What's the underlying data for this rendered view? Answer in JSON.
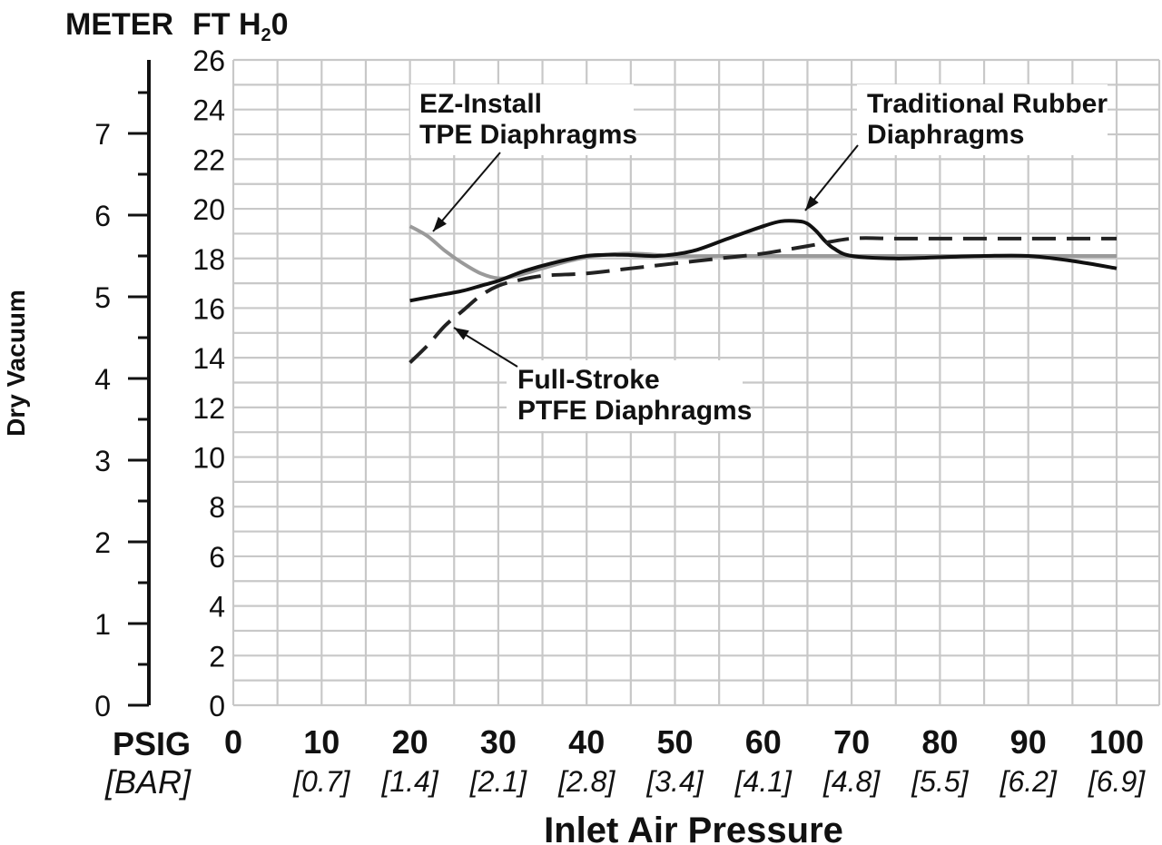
{
  "chart_data": {
    "type": "line",
    "xlabel": "Inlet Air Pressure",
    "ylabel": "Dry Vacuum",
    "left_axis_title": "METER",
    "right_axis_title": "FT H",
    "right_axis_title_sub": "2",
    "right_axis_title_tail": "0",
    "x_unit_label": "PSIG",
    "x_unit_label_secondary": "[BAR]",
    "xlim": [
      0,
      100
    ],
    "ylim": [
      0,
      26
    ],
    "y2lim": [
      0,
      7.9
    ],
    "x_ticks": [
      "0",
      "10",
      "20",
      "30",
      "40",
      "50",
      "60",
      "70",
      "80",
      "90",
      "100"
    ],
    "x_ticks_bar": [
      "",
      "[0.7]",
      "[1.4]",
      "[2.1]",
      "[2.8]",
      "[3.4]",
      "[4.1]",
      "[4.8]",
      "[5.5]",
      "[6.2]",
      "[6.9]"
    ],
    "y_ticks": [
      "0",
      "2",
      "4",
      "6",
      "8",
      "10",
      "12",
      "14",
      "16",
      "18",
      "20",
      "22",
      "24",
      "26"
    ],
    "y_meter_ticks": [
      "0",
      "1",
      "2",
      "3",
      "4",
      "5",
      "6",
      "7"
    ],
    "grid": true,
    "series": [
      {
        "name": "EZ-Install TPE Diaphragms",
        "color": "#9a9a9a",
        "dash": "solid",
        "x": [
          20,
          22,
          24,
          26,
          28,
          30,
          32,
          35,
          38,
          41,
          45,
          50,
          55,
          60,
          70,
          80,
          90,
          100
        ],
        "y": [
          19.3,
          18.9,
          18.3,
          17.8,
          17.4,
          17.2,
          17.3,
          17.6,
          17.9,
          18.1,
          18.2,
          18.1,
          18.1,
          18.1,
          18.1,
          18.1,
          18.1,
          18.1
        ]
      },
      {
        "name": "Traditional Rubber Diaphragms",
        "color": "#111111",
        "dash": "solid",
        "x": [
          20,
          23,
          26,
          28,
          30,
          33,
          36,
          40,
          44,
          48,
          52,
          56,
          60,
          62,
          64,
          65,
          66,
          67,
          68,
          70,
          75,
          80,
          85,
          90,
          95,
          100
        ],
        "y": [
          16.3,
          16.5,
          16.7,
          16.9,
          17.1,
          17.5,
          17.8,
          18.1,
          18.15,
          18.1,
          18.3,
          18.8,
          19.3,
          19.5,
          19.5,
          19.4,
          19.1,
          18.7,
          18.4,
          18.1,
          18.0,
          18.05,
          18.1,
          18.1,
          17.9,
          17.6
        ]
      },
      {
        "name": "Full-Stroke PTFE Diaphragms",
        "color": "#222222",
        "dash": "dashed",
        "x": [
          20,
          22,
          24,
          26,
          28,
          30,
          32,
          35,
          40,
          45,
          50,
          55,
          60,
          65,
          70,
          75,
          80,
          90,
          100
        ],
        "y": [
          13.8,
          14.5,
          15.3,
          15.9,
          16.5,
          16.9,
          17.1,
          17.3,
          17.4,
          17.6,
          17.8,
          18.0,
          18.2,
          18.5,
          18.8,
          18.8,
          18.8,
          18.8,
          18.8
        ]
      }
    ],
    "annotations": [
      {
        "id": "tpe",
        "lines": [
          "EZ-Install",
          "TPE Diaphragms"
        ]
      },
      {
        "id": "rubber",
        "lines": [
          "Traditional Rubber",
          "Diaphragms"
        ]
      },
      {
        "id": "ptfe",
        "lines": [
          "Full-Stroke",
          "PTFE Diaphragms"
        ]
      }
    ]
  }
}
